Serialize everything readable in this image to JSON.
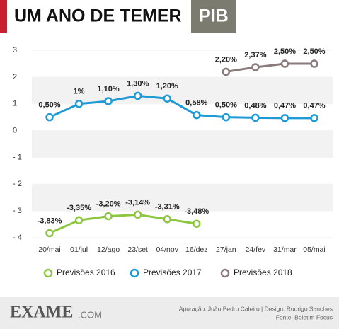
{
  "chart_data": {
    "type": "line",
    "title": "UM ANO DE TEMER",
    "subtitle": "PIB",
    "categories": [
      "20/mai",
      "01/jul",
      "12/ago",
      "23/set",
      "04/nov",
      "16/dez",
      "27/jan",
      "24/fev",
      "31/mar",
      "05/mai"
    ],
    "series": [
      {
        "name": "Previsões 2016",
        "color": "#8dc63f",
        "values": [
          -3.83,
          -3.35,
          -3.2,
          -3.14,
          -3.31,
          -3.48,
          null,
          null,
          null,
          null
        ],
        "value_labels": [
          "-3,83%",
          "-3,35%",
          "-3,20%",
          "-3,14%",
          "-3,31%",
          "-3,48%",
          null,
          null,
          null,
          null
        ]
      },
      {
        "name": "Previsões 2017",
        "color": "#1e9ad6",
        "values": [
          0.5,
          1,
          1.1,
          1.3,
          1.2,
          0.58,
          0.5,
          0.48,
          0.47,
          0.47
        ],
        "value_labels": [
          "0,50%",
          "1%",
          "1,10%",
          "1,30%",
          "1,20%",
          "0,58%",
          "0,50%",
          "0,48%",
          "0,47%",
          "0,47%"
        ]
      },
      {
        "name": "Previsões 2018",
        "color": "#8a7a7c",
        "values": [
          null,
          null,
          null,
          null,
          null,
          null,
          2.2,
          2.37,
          2.5,
          2.5
        ],
        "value_labels": [
          null,
          null,
          null,
          null,
          null,
          null,
          "2,20%",
          "2,37%",
          "2,50%",
          "2,50%"
        ]
      }
    ],
    "ylim": [
      -4.4,
      3.4
    ],
    "yticks": [
      3,
      2,
      1,
      0,
      {
        "value": -1,
        "label": "- 1"
      },
      {
        "value": -2,
        "label": "- 2"
      },
      {
        "value": -3,
        "label": "- 3"
      },
      {
        "value": -4,
        "label": "- 4"
      }
    ],
    "grid": true,
    "legend": "bottom",
    "brand": "EXAME",
    "brand_suffix": ".COM",
    "credits": "Apuração: João Pedro Caleiro  |  Design: Rodrigo Sanches",
    "source": "Fonte: Boletim Focus"
  }
}
